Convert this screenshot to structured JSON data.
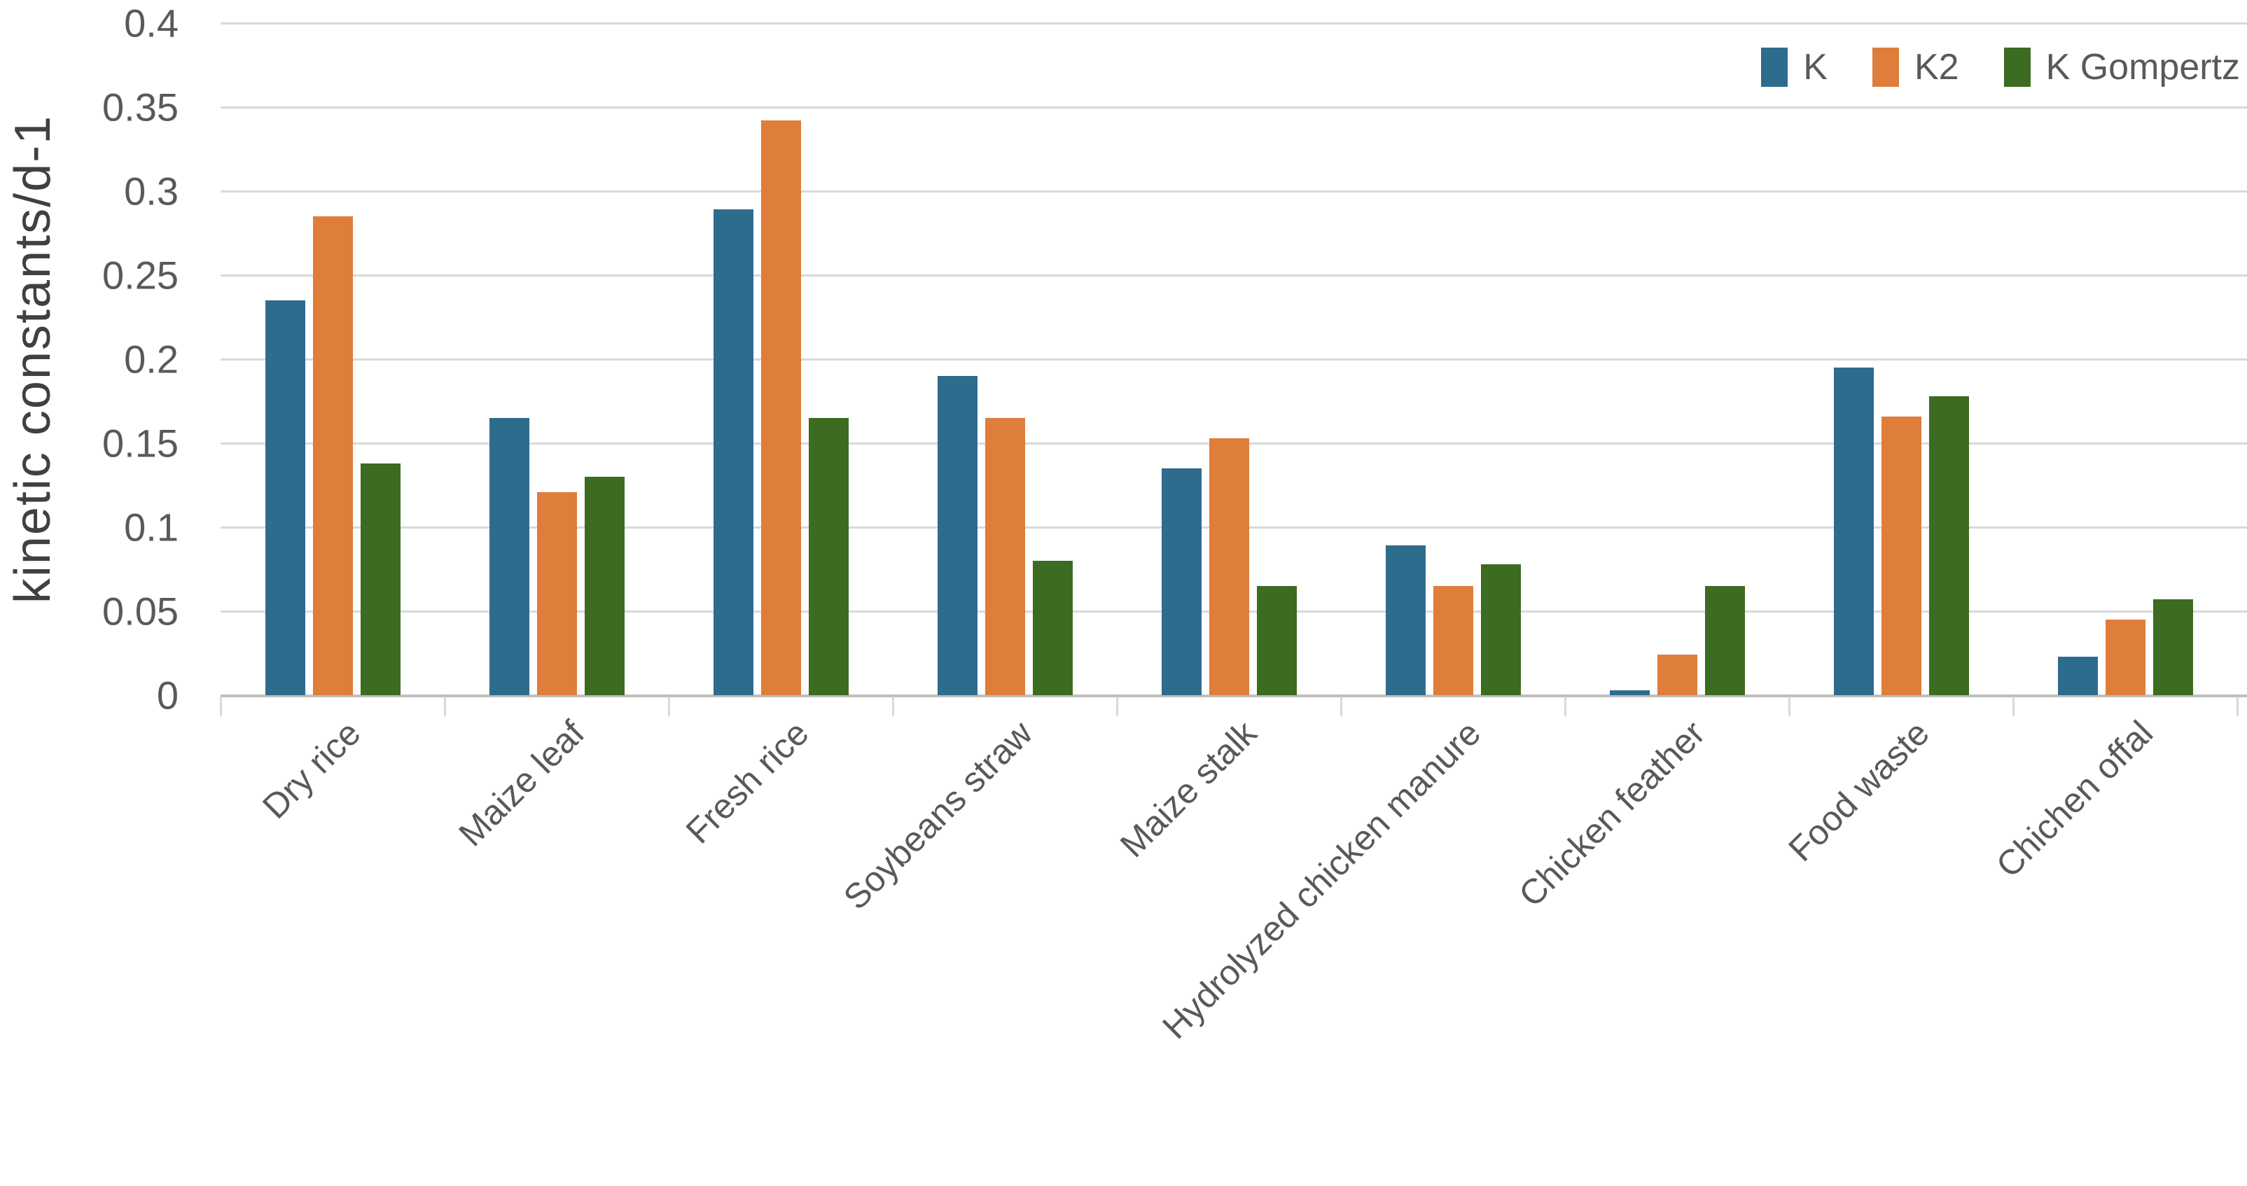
{
  "chart_data": {
    "type": "bar",
    "title": "",
    "xlabel": "",
    "ylabel": "kinetic constants/d-1",
    "ylim": [
      0,
      0.4
    ],
    "ytick_step": 0.05,
    "ytick_labels": [
      "0",
      "0.05",
      "0.1",
      "0.15",
      "0.2",
      "0.25",
      "0.3",
      "0.35",
      "0.4"
    ],
    "grid": true,
    "legend_position": "top-right",
    "categories": [
      "Dry rice",
      "Maize leaf",
      "Fresh rice",
      "Soybeans straw",
      "Maize stalk",
      "Hydrolyzed chicken manure",
      "Chicken feather",
      "Food waste",
      "Chichen offal"
    ],
    "series": [
      {
        "name": "K",
        "color": "#2E6C8E",
        "values": [
          0.235,
          0.165,
          0.289,
          0.19,
          0.135,
          0.089,
          0.003,
          0.195,
          0.023
        ]
      },
      {
        "name": "K2",
        "color": "#DF7D3B",
        "values": [
          0.285,
          0.121,
          0.342,
          0.165,
          0.153,
          0.065,
          0.024,
          0.166,
          0.045
        ]
      },
      {
        "name": "K Gompertz",
        "color": "#3C6B22",
        "values": [
          0.138,
          0.13,
          0.165,
          0.08,
          0.065,
          0.078,
          0.065,
          0.178,
          0.057
        ]
      }
    ]
  }
}
